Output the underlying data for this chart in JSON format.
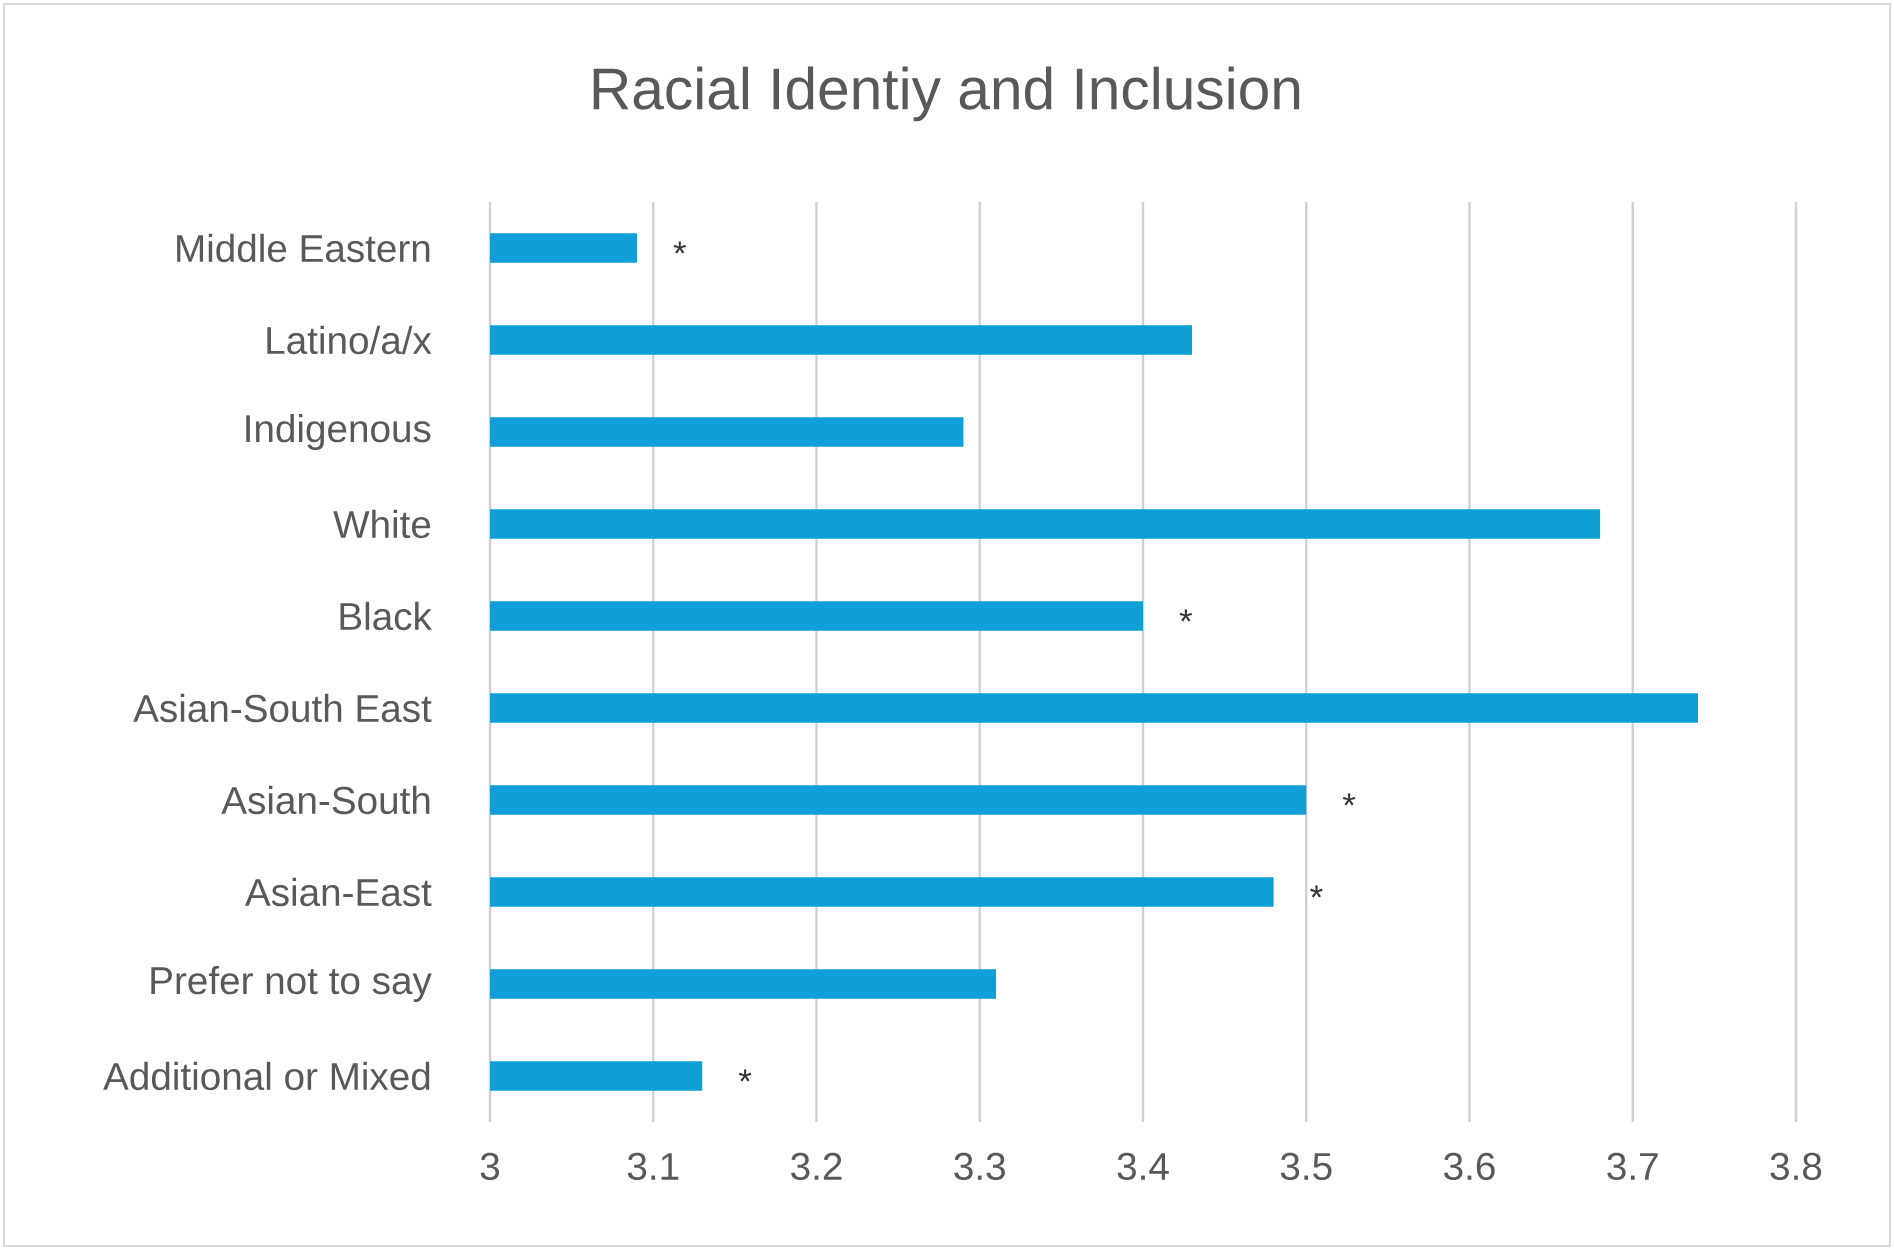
{
  "chart_data": {
    "type": "bar",
    "orientation": "horizontal",
    "title": "Racial Identiy and Inclusion",
    "categories": [
      "Middle Eastern",
      "Latino/a/x",
      "Indigenous",
      "White",
      "Black",
      "Asian-South East",
      "Asian-South",
      "Asian-East",
      "Prefer not to say",
      "Additional or Mixed"
    ],
    "values": [
      3.09,
      3.43,
      3.29,
      3.68,
      3.4,
      3.74,
      3.5,
      3.48,
      3.31,
      3.13
    ],
    "color": "#0f9ed5",
    "xlim": [
      3,
      3.8
    ],
    "xticks": [
      3,
      3.1,
      3.2,
      3.3,
      3.4,
      3.5,
      3.6,
      3.7,
      3.8
    ],
    "grid": "x",
    "annotations": [
      {
        "text": "*",
        "x": 3.09,
        "y": "Middle Eastern"
      },
      {
        "text": "*",
        "x": 3.4,
        "y": "Black"
      },
      {
        "text": "*",
        "x": 3.5,
        "y": "Asian-South"
      },
      {
        "text": "*",
        "x": 3.48,
        "y": "Asian-East"
      },
      {
        "text": "*",
        "x": 3.13,
        "y": "Additional or Mixed"
      }
    ]
  }
}
